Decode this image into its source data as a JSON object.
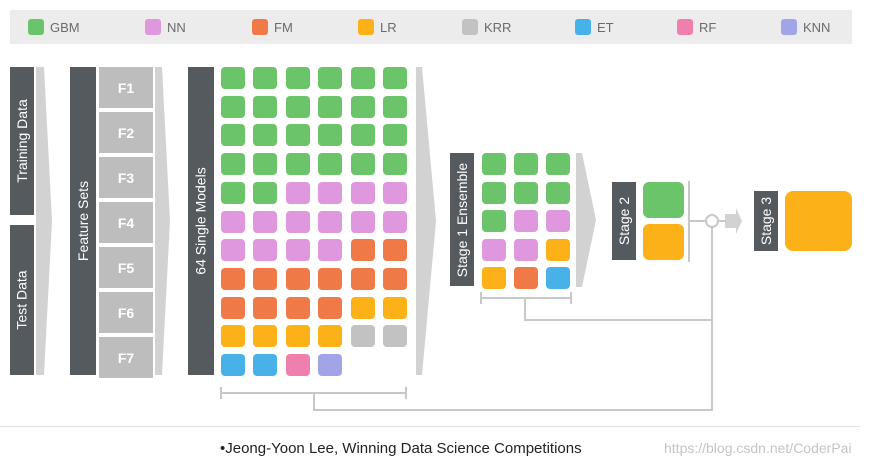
{
  "legend": [
    {
      "label": "GBM",
      "color": "#6cc46a"
    },
    {
      "label": "NN",
      "color": "#df97dd"
    },
    {
      "label": "FM",
      "color": "#f07a47"
    },
    {
      "label": "LR",
      "color": "#fbb117"
    },
    {
      "label": "KRR",
      "color": "#c2c2c2"
    },
    {
      "label": "ET",
      "color": "#48b2e8"
    },
    {
      "label": "RF",
      "color": "#ef7fac"
    },
    {
      "label": "KNN",
      "color": "#a1a4e6"
    }
  ],
  "labels": {
    "training_data": "Training Data",
    "test_data": "Test Data",
    "feature_sets": "Feature Sets",
    "single_models": "64 Single Models",
    "stage1": "Stage 1 Ensemble",
    "stage2": "Stage 2",
    "stage3": "Stage 3"
  },
  "feature_sets": [
    "F1",
    "F2",
    "F3",
    "F4",
    "F5",
    "F6",
    "F7"
  ],
  "single_models_grid": [
    [
      "GBM",
      "GBM",
      "GBM",
      "GBM",
      "GBM",
      "GBM"
    ],
    [
      "GBM",
      "GBM",
      "GBM",
      "GBM",
      "GBM",
      "GBM"
    ],
    [
      "GBM",
      "GBM",
      "GBM",
      "GBM",
      "GBM",
      "GBM"
    ],
    [
      "GBM",
      "GBM",
      "GBM",
      "GBM",
      "GBM",
      "GBM"
    ],
    [
      "GBM",
      "GBM",
      "NN",
      "NN",
      "NN",
      "NN"
    ],
    [
      "NN",
      "NN",
      "NN",
      "NN",
      "NN",
      "NN"
    ],
    [
      "NN",
      "NN",
      "NN",
      "NN",
      "FM",
      "FM"
    ],
    [
      "FM",
      "FM",
      "FM",
      "FM",
      "FM",
      "FM"
    ],
    [
      "FM",
      "FM",
      "FM",
      "FM",
      "LR",
      "LR"
    ],
    [
      "LR",
      "LR",
      "LR",
      "LR",
      "KRR",
      "KRR"
    ],
    [
      "ET",
      "ET",
      "RF",
      "KNN"
    ]
  ],
  "stage1_grid": [
    [
      "GBM",
      "GBM",
      "GBM"
    ],
    [
      "GBM",
      "GBM",
      "GBM"
    ],
    [
      "GBM",
      "NN",
      "NN"
    ],
    [
      "NN",
      "NN",
      "LR"
    ],
    [
      "LR",
      "FM",
      "ET"
    ]
  ],
  "stage2_grid": [
    "GBM",
    "LR"
  ],
  "stage3_grid": [
    "LR"
  ],
  "caption": "•Jeong-Yoon Lee, Winning Data Science Competitions",
  "watermark": "https://blog.csdn.net/CoderPai"
}
